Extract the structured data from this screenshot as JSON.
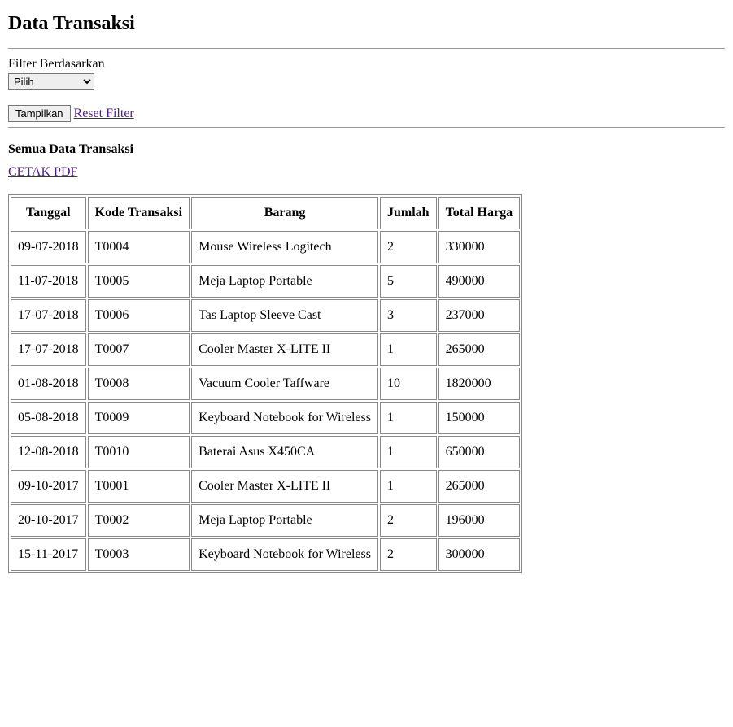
{
  "page": {
    "title": "Data Transaksi",
    "filter_label": "Filter Berdasarkan",
    "filter_selected": "Pilih",
    "show_button": "Tampilkan",
    "reset_link": "Reset Filter",
    "subtitle": "Semua Data Transaksi",
    "pdf_link": "CETAK PDF"
  },
  "table": {
    "columns": [
      "Tanggal",
      "Kode Transaksi",
      "Barang",
      "Jumlah",
      "Total Harga"
    ],
    "rows": [
      [
        "09-07-2018",
        "T0004",
        "Mouse Wireless Logitech",
        "2",
        "330000"
      ],
      [
        "11-07-2018",
        "T0005",
        "Meja Laptop Portable",
        "5",
        "490000"
      ],
      [
        "17-07-2018",
        "T0006",
        "Tas Laptop Sleeve Cast",
        "3",
        "237000"
      ],
      [
        "17-07-2018",
        "T0007",
        "Cooler Master X-LITE II",
        "1",
        "265000"
      ],
      [
        "01-08-2018",
        "T0008",
        "Vacuum Cooler Taffware",
        "10",
        "1820000"
      ],
      [
        "05-08-2018",
        "T0009",
        "Keyboard Notebook for Wireless",
        "1",
        "150000"
      ],
      [
        "12-08-2018",
        "T0010",
        "Baterai Asus X450CA",
        "1",
        "650000"
      ],
      [
        "09-10-2017",
        "T0001",
        "Cooler Master X-LITE II",
        "1",
        "265000"
      ],
      [
        "20-10-2017",
        "T0002",
        "Meja Laptop Portable",
        "2",
        "196000"
      ],
      [
        "15-11-2017",
        "T0003",
        "Keyboard Notebook for Wireless",
        "2",
        "300000"
      ]
    ]
  }
}
